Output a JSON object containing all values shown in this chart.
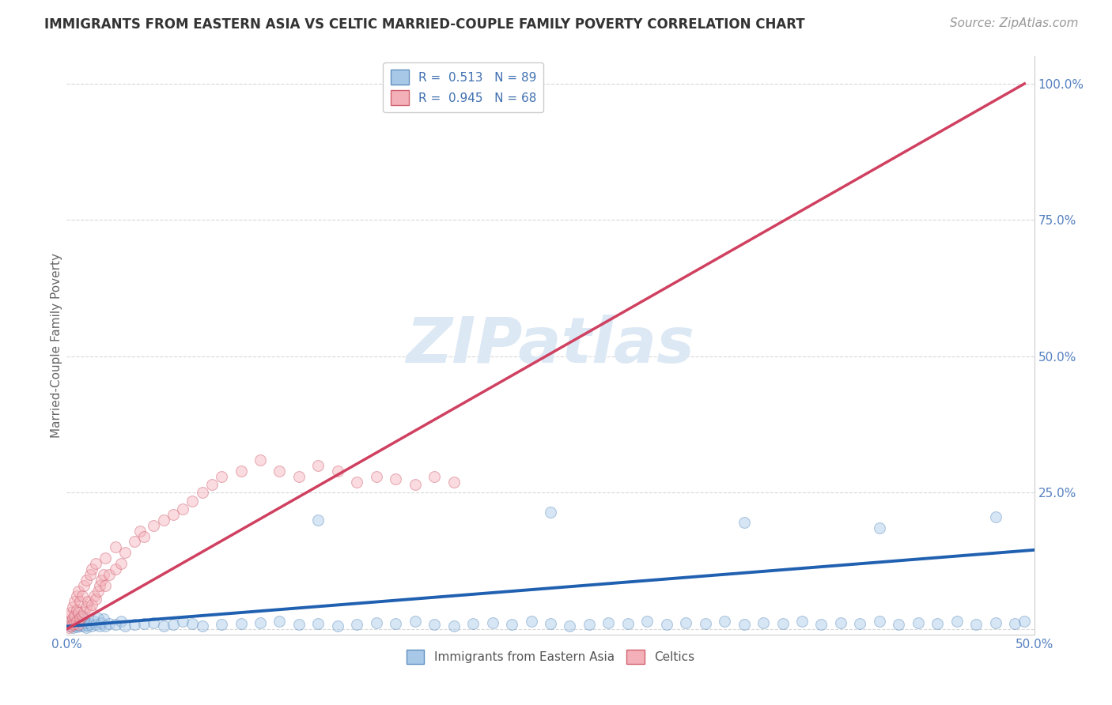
{
  "title": "IMMIGRANTS FROM EASTERN ASIA VS CELTIC MARRIED-COUPLE FAMILY POVERTY CORRELATION CHART",
  "source": "Source: ZipAtlas.com",
  "ylabel": "Married-Couple Family Poverty",
  "yticks": [
    0.0,
    0.25,
    0.5,
    0.75,
    1.0
  ],
  "ytick_labels": [
    "",
    "25.0%",
    "50.0%",
    "75.0%",
    "100.0%"
  ],
  "xlim": [
    0.0,
    0.5
  ],
  "ylim": [
    -0.01,
    1.05
  ],
  "watermark": "ZIPatlas",
  "legend_entries": [
    {
      "label": "Immigrants from Eastern Asia",
      "R": 0.513,
      "N": 89,
      "color": "#a8c8e8"
    },
    {
      "label": "Celtics",
      "R": 0.945,
      "N": 68,
      "color": "#f4b0b8"
    }
  ],
  "blue_scatter_x": [
    0.001,
    0.002,
    0.002,
    0.003,
    0.003,
    0.004,
    0.004,
    0.005,
    0.005,
    0.006,
    0.006,
    0.007,
    0.007,
    0.008,
    0.008,
    0.009,
    0.009,
    0.01,
    0.01,
    0.011,
    0.012,
    0.013,
    0.014,
    0.015,
    0.016,
    0.017,
    0.018,
    0.019,
    0.02,
    0.022,
    0.025,
    0.028,
    0.03,
    0.035,
    0.04,
    0.045,
    0.05,
    0.055,
    0.06,
    0.065,
    0.07,
    0.08,
    0.09,
    0.1,
    0.11,
    0.12,
    0.13,
    0.14,
    0.15,
    0.16,
    0.17,
    0.18,
    0.19,
    0.2,
    0.21,
    0.22,
    0.23,
    0.24,
    0.25,
    0.26,
    0.27,
    0.28,
    0.29,
    0.3,
    0.31,
    0.32,
    0.33,
    0.34,
    0.35,
    0.36,
    0.37,
    0.38,
    0.39,
    0.4,
    0.41,
    0.42,
    0.43,
    0.44,
    0.45,
    0.46,
    0.47,
    0.48,
    0.49,
    0.495,
    0.13,
    0.25,
    0.35,
    0.42,
    0.48
  ],
  "blue_scatter_y": [
    0.005,
    0.008,
    0.012,
    0.003,
    0.015,
    0.006,
    0.018,
    0.004,
    0.01,
    0.007,
    0.02,
    0.005,
    0.015,
    0.008,
    0.025,
    0.006,
    0.018,
    0.003,
    0.012,
    0.007,
    0.01,
    0.005,
    0.015,
    0.008,
    0.02,
    0.006,
    0.012,
    0.018,
    0.005,
    0.01,
    0.008,
    0.015,
    0.005,
    0.008,
    0.01,
    0.012,
    0.006,
    0.008,
    0.015,
    0.01,
    0.005,
    0.008,
    0.01,
    0.012,
    0.015,
    0.008,
    0.01,
    0.005,
    0.008,
    0.012,
    0.01,
    0.015,
    0.008,
    0.005,
    0.01,
    0.012,
    0.008,
    0.015,
    0.01,
    0.005,
    0.008,
    0.012,
    0.01,
    0.015,
    0.008,
    0.012,
    0.01,
    0.015,
    0.008,
    0.012,
    0.01,
    0.015,
    0.008,
    0.012,
    0.01,
    0.015,
    0.008,
    0.012,
    0.01,
    0.015,
    0.008,
    0.012,
    0.01,
    0.015,
    0.2,
    0.215,
    0.195,
    0.185,
    0.205
  ],
  "pink_scatter_x": [
    0.001,
    0.001,
    0.001,
    0.002,
    0.002,
    0.002,
    0.003,
    0.003,
    0.003,
    0.004,
    0.004,
    0.004,
    0.005,
    0.005,
    0.005,
    0.006,
    0.006,
    0.006,
    0.007,
    0.007,
    0.008,
    0.008,
    0.009,
    0.009,
    0.01,
    0.01,
    0.011,
    0.012,
    0.012,
    0.013,
    0.013,
    0.014,
    0.015,
    0.015,
    0.016,
    0.017,
    0.018,
    0.019,
    0.02,
    0.02,
    0.022,
    0.025,
    0.025,
    0.028,
    0.03,
    0.035,
    0.038,
    0.04,
    0.045,
    0.05,
    0.055,
    0.06,
    0.065,
    0.07,
    0.075,
    0.08,
    0.09,
    0.1,
    0.11,
    0.12,
    0.13,
    0.14,
    0.15,
    0.16,
    0.17,
    0.18,
    0.19,
    0.2
  ],
  "pink_scatter_y": [
    0.003,
    0.01,
    0.025,
    0.005,
    0.015,
    0.03,
    0.008,
    0.02,
    0.04,
    0.01,
    0.025,
    0.05,
    0.015,
    0.035,
    0.06,
    0.008,
    0.03,
    0.07,
    0.02,
    0.05,
    0.025,
    0.06,
    0.03,
    0.08,
    0.04,
    0.09,
    0.05,
    0.035,
    0.1,
    0.045,
    0.11,
    0.06,
    0.055,
    0.12,
    0.07,
    0.08,
    0.09,
    0.1,
    0.08,
    0.13,
    0.1,
    0.11,
    0.15,
    0.12,
    0.14,
    0.16,
    0.18,
    0.17,
    0.19,
    0.2,
    0.21,
    0.22,
    0.235,
    0.25,
    0.265,
    0.28,
    0.29,
    0.31,
    0.29,
    0.28,
    0.3,
    0.29,
    0.27,
    0.28,
    0.275,
    0.265,
    0.28,
    0.27
  ],
  "blue_line_x": [
    0.0,
    0.5
  ],
  "blue_line_y": [
    0.005,
    0.145
  ],
  "pink_line_x": [
    0.0,
    0.495
  ],
  "pink_line_y": [
    0.0,
    1.0
  ],
  "scatter_size": 100,
  "scatter_alpha": 0.45,
  "blue_color": "#a8c8e8",
  "blue_edge_color": "#6090c0",
  "pink_color": "#f4b0b8",
  "pink_edge_color": "#d06070",
  "blue_line_color": "#2060b0",
  "pink_line_color": "#d04060",
  "title_fontsize": 12,
  "source_fontsize": 11,
  "legend_fontsize": 11,
  "axis_label_fontsize": 11,
  "tick_fontsize": 11,
  "watermark_color": "#dce8f4",
  "watermark_fontsize": 58,
  "background_color": "#ffffff",
  "grid_color": "#d8d8d8"
}
